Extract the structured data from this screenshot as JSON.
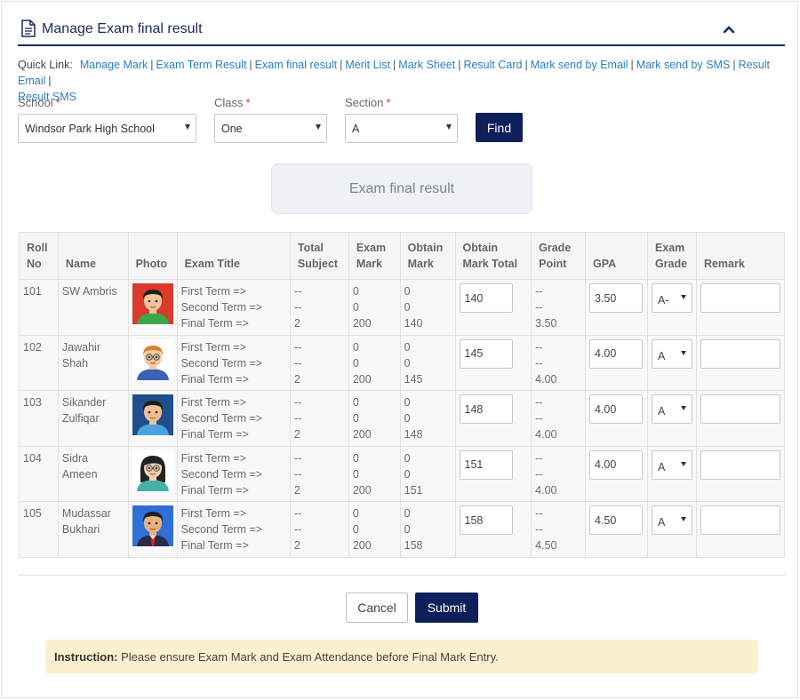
{
  "header": {
    "title": "Manage Exam final result"
  },
  "quick_links": {
    "label": "Quick Link:",
    "items": [
      "Manage Mark",
      "Exam Term Result",
      "Exam final result",
      "Merit List",
      "Mark Sheet",
      "Result Card",
      "Mark send by Email",
      "Mark send by SMS",
      "Result Email",
      "Result SMS"
    ]
  },
  "filters": {
    "school_label": "School",
    "school_value": "Windsor Park High School",
    "class_label": "Class",
    "class_value": "One",
    "section_label": "Section",
    "section_value": "A",
    "required_mark": "*",
    "find_label": "Find"
  },
  "result_title": "Exam final result",
  "table": {
    "headers": {
      "roll": "Roll No",
      "name": "Name",
      "photo": "Photo",
      "exam_title": "Exam Title",
      "total_subject": "Total Subject",
      "exam_mark": "Exam Mark",
      "obtain_mark": "Obtain Mark",
      "obtain_total": "Obtain Mark Total",
      "grade_point": "Grade Point",
      "gpa": "GPA",
      "exam_grade": "Exam Grade",
      "remark": "Remark"
    },
    "terms": [
      "First Term =>",
      "Second Term =>",
      "Final Term =>"
    ],
    "rows": [
      {
        "roll": "101",
        "name": "SW Ambris",
        "avatar": "boy-green-shirt",
        "total_subject": [
          "--",
          "--",
          "2"
        ],
        "exam_mark": [
          "0",
          "0",
          "200"
        ],
        "obtain_mark": [
          "0",
          "0",
          "140"
        ],
        "obtain_total": "140",
        "grade_point": [
          "--",
          "--",
          "3.50"
        ],
        "gpa": "3.50",
        "grade": "A-",
        "remark": ""
      },
      {
        "roll": "102",
        "name": "Jawahir Shah",
        "avatar": "boy-glasses",
        "total_subject": [
          "--",
          "--",
          "2"
        ],
        "exam_mark": [
          "0",
          "0",
          "200"
        ],
        "obtain_mark": [
          "0",
          "0",
          "145"
        ],
        "obtain_total": "145",
        "grade_point": [
          "--",
          "--",
          "4.00"
        ],
        "gpa": "4.00",
        "grade": "A",
        "remark": ""
      },
      {
        "roll": "103",
        "name": "Sikander Zulfiqar",
        "avatar": "boy-blue-shirt",
        "total_subject": [
          "--",
          "--",
          "2"
        ],
        "exam_mark": [
          "0",
          "0",
          "200"
        ],
        "obtain_mark": [
          "0",
          "0",
          "148"
        ],
        "obtain_total": "148",
        "grade_point": [
          "--",
          "--",
          "4.00"
        ],
        "gpa": "4.00",
        "grade": "A",
        "remark": ""
      },
      {
        "roll": "104",
        "name": "Sidra Ameen",
        "avatar": "girl-glasses",
        "total_subject": [
          "--",
          "--",
          "2"
        ],
        "exam_mark": [
          "0",
          "0",
          "200"
        ],
        "obtain_mark": [
          "0",
          "0",
          "151"
        ],
        "obtain_total": "151",
        "grade_point": [
          "--",
          "--",
          "4.00"
        ],
        "gpa": "4.00",
        "grade": "A",
        "remark": ""
      },
      {
        "roll": "105",
        "name": "Mudassar Bukhari",
        "avatar": "man-suit",
        "total_subject": [
          "--",
          "--",
          "2"
        ],
        "exam_mark": [
          "0",
          "0",
          "200"
        ],
        "obtain_mark": [
          "0",
          "0",
          "158"
        ],
        "obtain_total": "158",
        "grade_point": [
          "--",
          "--",
          "4.50"
        ],
        "gpa": "4.50",
        "grade": "A",
        "remark": ""
      }
    ]
  },
  "actions": {
    "cancel_label": "Cancel",
    "submit_label": "Submit"
  },
  "instruction": {
    "label": "Instruction:",
    "text": "Please ensure Exam Mark and Exam Attendance before Final Mark Entry."
  },
  "colors": {
    "primary": "#0d1f5c",
    "link": "#2a7fc0",
    "instruction_bg": "#fbf0cf",
    "required": "#e3342f"
  }
}
